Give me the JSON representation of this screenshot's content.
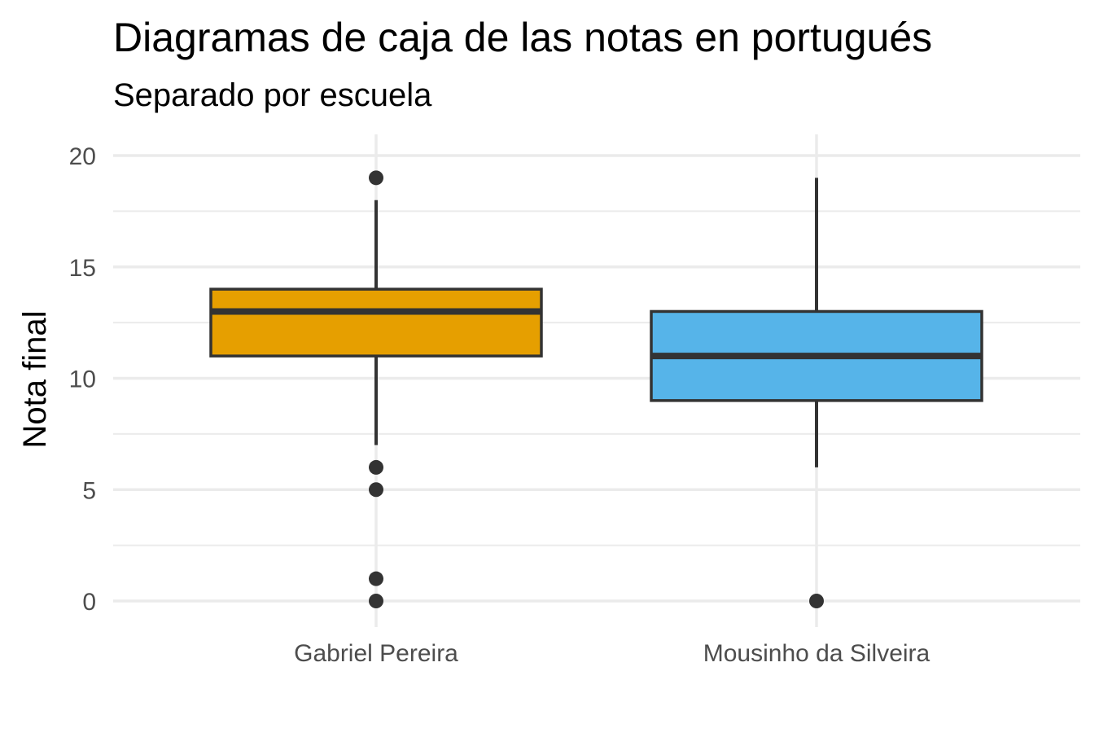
{
  "chart_data": {
    "type": "boxplot",
    "title": "Diagramas de caja de las notas en portugués",
    "subtitle": "Separado por escuela",
    "xlabel": "",
    "ylabel": "Nota final",
    "ylim": [
      0,
      20
    ],
    "yticks": [
      0,
      5,
      10,
      15,
      20
    ],
    "ytick_labels": [
      "0",
      "5",
      "10",
      "15",
      "20"
    ],
    "grid": true,
    "legend": "none",
    "categories": [
      "Gabriel Pereira",
      "Mousinho da Silveira"
    ],
    "boxes": [
      {
        "category": "Gabriel Pereira",
        "whisker_low": 7,
        "q1": 11,
        "median": 13,
        "q3": 14,
        "whisker_high": 18,
        "outliers": [
          19,
          6,
          5,
          1,
          0
        ],
        "color": "#E69F00"
      },
      {
        "category": "Mousinho da Silveira",
        "whisker_low": 6,
        "q1": 9,
        "median": 11,
        "q3": 13,
        "whisker_high": 19,
        "outliers": [
          0
        ],
        "color": "#56B4E9"
      }
    ],
    "colors": {
      "grid": "#ebebeb",
      "outline": "#333333"
    }
  }
}
